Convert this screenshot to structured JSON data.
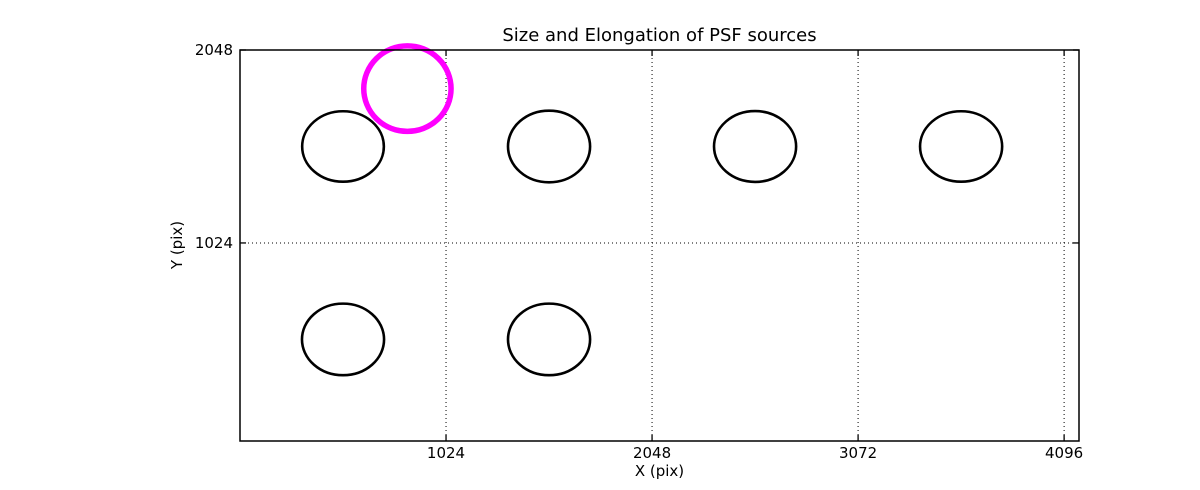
{
  "figure": {
    "background": "#ffffff",
    "foreground": "#000000"
  },
  "chart_data": {
    "type": "scatter",
    "title": "Size and Elongation of PSF sources",
    "xlabel": "X (pix)",
    "ylabel": "Y (pix)",
    "xlim": [
      0,
      4170
    ],
    "ylim": [
      -27,
      2048
    ],
    "xticks": [
      1024,
      2048,
      3072,
      4096
    ],
    "yticks": [
      1024,
      2048
    ],
    "grid": {
      "visible": true,
      "linestyle": "dotted",
      "color": "#000000"
    },
    "highlight_color": "#ff00ff",
    "ellipse_color": "#000000",
    "ellipses": [
      {
        "x": 512,
        "y": 1536,
        "rx": 203,
        "ry": 187,
        "color": "#000000",
        "linewidth": 2.6,
        "highlighted": false
      },
      {
        "x": 1536,
        "y": 1536,
        "rx": 204,
        "ry": 190,
        "color": "#000000",
        "linewidth": 2.6,
        "highlighted": false
      },
      {
        "x": 2560,
        "y": 1536,
        "rx": 204,
        "ry": 188,
        "color": "#000000",
        "linewidth": 2.6,
        "highlighted": false
      },
      {
        "x": 3584,
        "y": 1536,
        "rx": 204,
        "ry": 187,
        "color": "#000000",
        "linewidth": 2.6,
        "highlighted": false
      },
      {
        "x": 512,
        "y": 512,
        "rx": 204,
        "ry": 190,
        "color": "#000000",
        "linewidth": 2.6,
        "highlighted": false
      },
      {
        "x": 1536,
        "y": 512,
        "rx": 204,
        "ry": 190,
        "color": "#000000",
        "linewidth": 2.6,
        "highlighted": false
      },
      {
        "x": 832,
        "y": 1843,
        "rx": 217,
        "ry": 227,
        "color": "#ff00ff",
        "linewidth": 5.5,
        "highlighted": true
      }
    ]
  }
}
